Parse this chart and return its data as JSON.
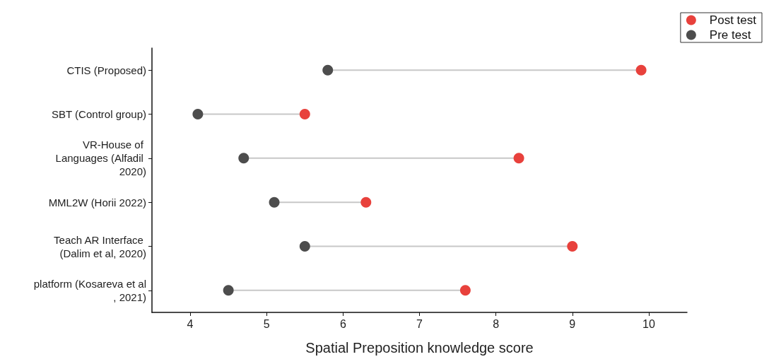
{
  "chart_data": {
    "type": "lollipop",
    "orientation": "horizontal",
    "xlabel": "Spatial Preposition knowledge score",
    "categories": [
      "CTIS (Proposed)",
      "SBT (Control group)",
      "VR-House of Languages (Alfadil 2020)",
      "MML2W (Horii 2022)",
      "Teach AR Interface (Dalim et al, 2020)",
      "platform (Kosareva et al, 2021)"
    ],
    "series": [
      {
        "name": "Post test",
        "color": "#e8413c",
        "values": [
          9.9,
          5.5,
          8.3,
          6.3,
          9.0,
          7.6
        ]
      },
      {
        "name": "Pre test",
        "color": "#4d4d4d",
        "values": [
          5.8,
          4.1,
          4.7,
          5.1,
          5.5,
          4.5
        ]
      }
    ],
    "xlim": [
      3.5,
      10.5
    ],
    "xticks": [
      4,
      5,
      6,
      7,
      8,
      9,
      10
    ],
    "legend": "top right",
    "marker": "circle",
    "grid": false
  }
}
